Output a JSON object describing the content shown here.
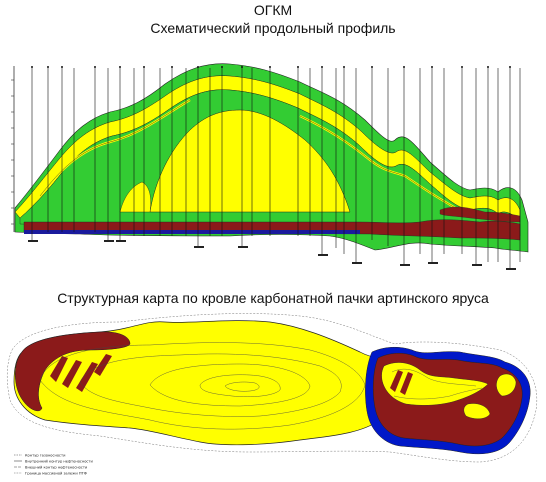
{
  "header": {
    "title": "ОГКМ",
    "subtitle": "Схематический продольный профиль"
  },
  "map": {
    "title": "Структурная карта по кровле карбонатной пачки артинского яруса"
  },
  "colors": {
    "gas": "#ffff00",
    "carbonate_green": "#33cc33",
    "brown": "#8b1a1a",
    "water": "#0018c8",
    "blue_base": "#1a1a9c"
  },
  "legend_items": [
    "Контур газоносности",
    "Внутренний контур нефтеносности",
    "Внешний контур нефтеносности",
    "Граница массивной залежи ПТФ"
  ]
}
